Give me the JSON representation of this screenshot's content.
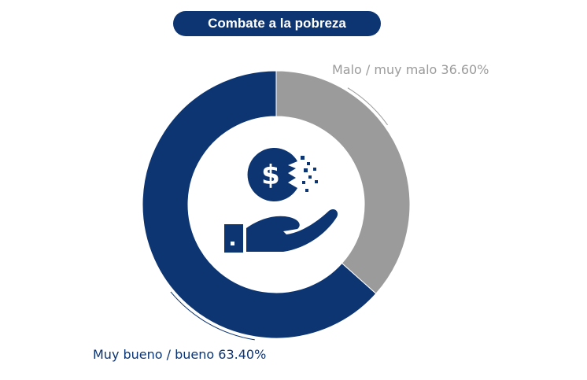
{
  "chart_data": {
    "type": "pie",
    "title": "Combate a la pobreza",
    "slices": [
      {
        "label": "Malo / muy malo 36.60%",
        "value": 36.6,
        "color": "#9b9b9b"
      },
      {
        "label": "Muy bueno / bueno 63.40%",
        "value": 63.4,
        "color": "#0d3572"
      }
    ],
    "donut": true,
    "legend": "none"
  },
  "icons": {
    "center": "money-hand-icon"
  },
  "colors": {
    "primary": "#0d3572",
    "secondary": "#9b9b9b",
    "background": "#ffffff"
  }
}
